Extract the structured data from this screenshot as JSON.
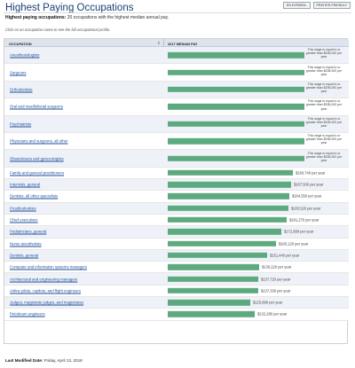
{
  "header": {
    "title": "Highest Paying Occupations",
    "links": [
      "EN ESPAÑOL",
      "PRINTER-FRIENDLY"
    ]
  },
  "subtitle": {
    "bold": "Highest paying occupations:",
    "text": " 20 occupations with the highest median annual pay."
  },
  "hint": "Click on an occupation name to see the full occupational profile.",
  "table": {
    "col_occupation": "OCCUPATION",
    "col_pay": "2017 MEDIAN PAY",
    "note_text": "This wage is equal to or greater than $208,000 per year",
    "rows": [
      {
        "name": "Anesthesiologists",
        "pay": 208000,
        "label": ""
      },
      {
        "name": "Surgeons",
        "pay": 208000,
        "label": ""
      },
      {
        "name": "Orthodontists",
        "pay": 208000,
        "label": ""
      },
      {
        "name": "Oral and maxillofacial surgeons",
        "pay": 208000,
        "label": ""
      },
      {
        "name": "Psychiatrists",
        "pay": 208000,
        "label": ""
      },
      {
        "name": "Physicians and surgeons, all other",
        "pay": 208000,
        "label": ""
      },
      {
        "name": "Obstetricians and gynecologists",
        "pay": 208000,
        "label": ""
      },
      {
        "name": "Family and general practitioners",
        "pay": 190740,
        "label": "$190,740 per year"
      },
      {
        "name": "Internists, general",
        "pay": 187500,
        "label": "$187,500 per year"
      },
      {
        "name": "Dentists, all other specialists",
        "pay": 184550,
        "label": "$184,550 per year"
      },
      {
        "name": "Prosthodontists",
        "pay": 183520,
        "label": "$183,520 per year"
      },
      {
        "name": "Chief executives",
        "pay": 181270,
        "label": "$181,270 per year"
      },
      {
        "name": "Pediatricians, general",
        "pay": 172890,
        "label": "$172,890 per year"
      },
      {
        "name": "Nurse anesthetists",
        "pay": 165120,
        "label": "$165,120 per year"
      },
      {
        "name": "Dentists, general",
        "pay": 151440,
        "label": "$151,440 per year"
      },
      {
        "name": "Computer and information systems managers",
        "pay": 139220,
        "label": "$139,220 per year"
      },
      {
        "name": "Architectural and engineering managers",
        "pay": 137720,
        "label": "$137,720 per year"
      },
      {
        "name": "Airline pilots, copilots, and flight engineers",
        "pay": 137330,
        "label": "$137,330 per year"
      },
      {
        "name": "Judges, magistrate judges, and magistrates",
        "pay": 125880,
        "label": "$125,880 per year"
      },
      {
        "name": "Petroleum engineers",
        "pay": 132280,
        "label": "$132,280 per year"
      }
    ]
  },
  "footer": {
    "label": "Last Modified Date:",
    "date": " Friday, April 13, 2018"
  }
}
